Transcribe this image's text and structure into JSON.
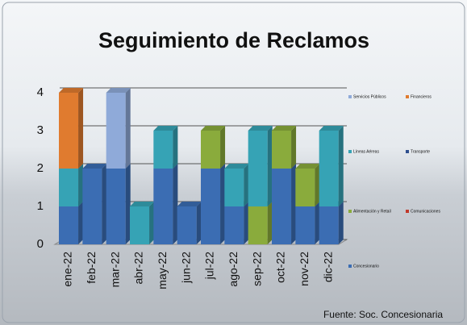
{
  "chart_data": {
    "type": "stacked_bar",
    "title": "Seguimiento de Reclamos",
    "source": "Fuente: Soc. Concesionaria",
    "categories": [
      "ene-22",
      "feb-22",
      "mar-22",
      "abr-22",
      "may-22",
      "jun-22",
      "jul-22",
      "ago-22",
      "sep-22",
      "oct-22",
      "nov-22",
      "dic-22"
    ],
    "series": [
      {
        "name": "Concesionario",
        "color": "#3b6db3",
        "values": [
          1,
          2,
          2,
          0,
          2,
          1,
          2,
          1,
          0,
          2,
          1,
          1
        ]
      },
      {
        "name": "Comunicaciones",
        "color": "#c0392b",
        "values": [
          0,
          0,
          0,
          0,
          0,
          0,
          0,
          0,
          0,
          0,
          0,
          0
        ]
      },
      {
        "name": "Alimentación y Retail",
        "color": "#8aab3c",
        "values": [
          0,
          0,
          0,
          0,
          0,
          0,
          1,
          0,
          1,
          1,
          1,
          0
        ]
      },
      {
        "name": "Transporte",
        "color": "#2e4f8e",
        "values": [
          0,
          0,
          0,
          0,
          0,
          0,
          0,
          0,
          0,
          0,
          0,
          0
        ]
      },
      {
        "name": "Líneas Aéreas",
        "color": "#36a3b5",
        "values": [
          1,
          0,
          0,
          1,
          1,
          0,
          0,
          1,
          2,
          0,
          0,
          2
        ]
      },
      {
        "name": "Financieros",
        "color": "#e07b2f",
        "values": [
          2,
          0,
          0,
          0,
          0,
          0,
          0,
          0,
          0,
          0,
          0,
          0
        ]
      },
      {
        "name": "Servicios Públicos",
        "color": "#8faad9",
        "values": [
          0,
          0,
          2,
          0,
          0,
          0,
          0,
          0,
          0,
          0,
          0,
          0
        ]
      }
    ],
    "ylim": [
      0,
      4
    ],
    "yticks": [
      0,
      1,
      2,
      3,
      4
    ],
    "grid": true
  }
}
